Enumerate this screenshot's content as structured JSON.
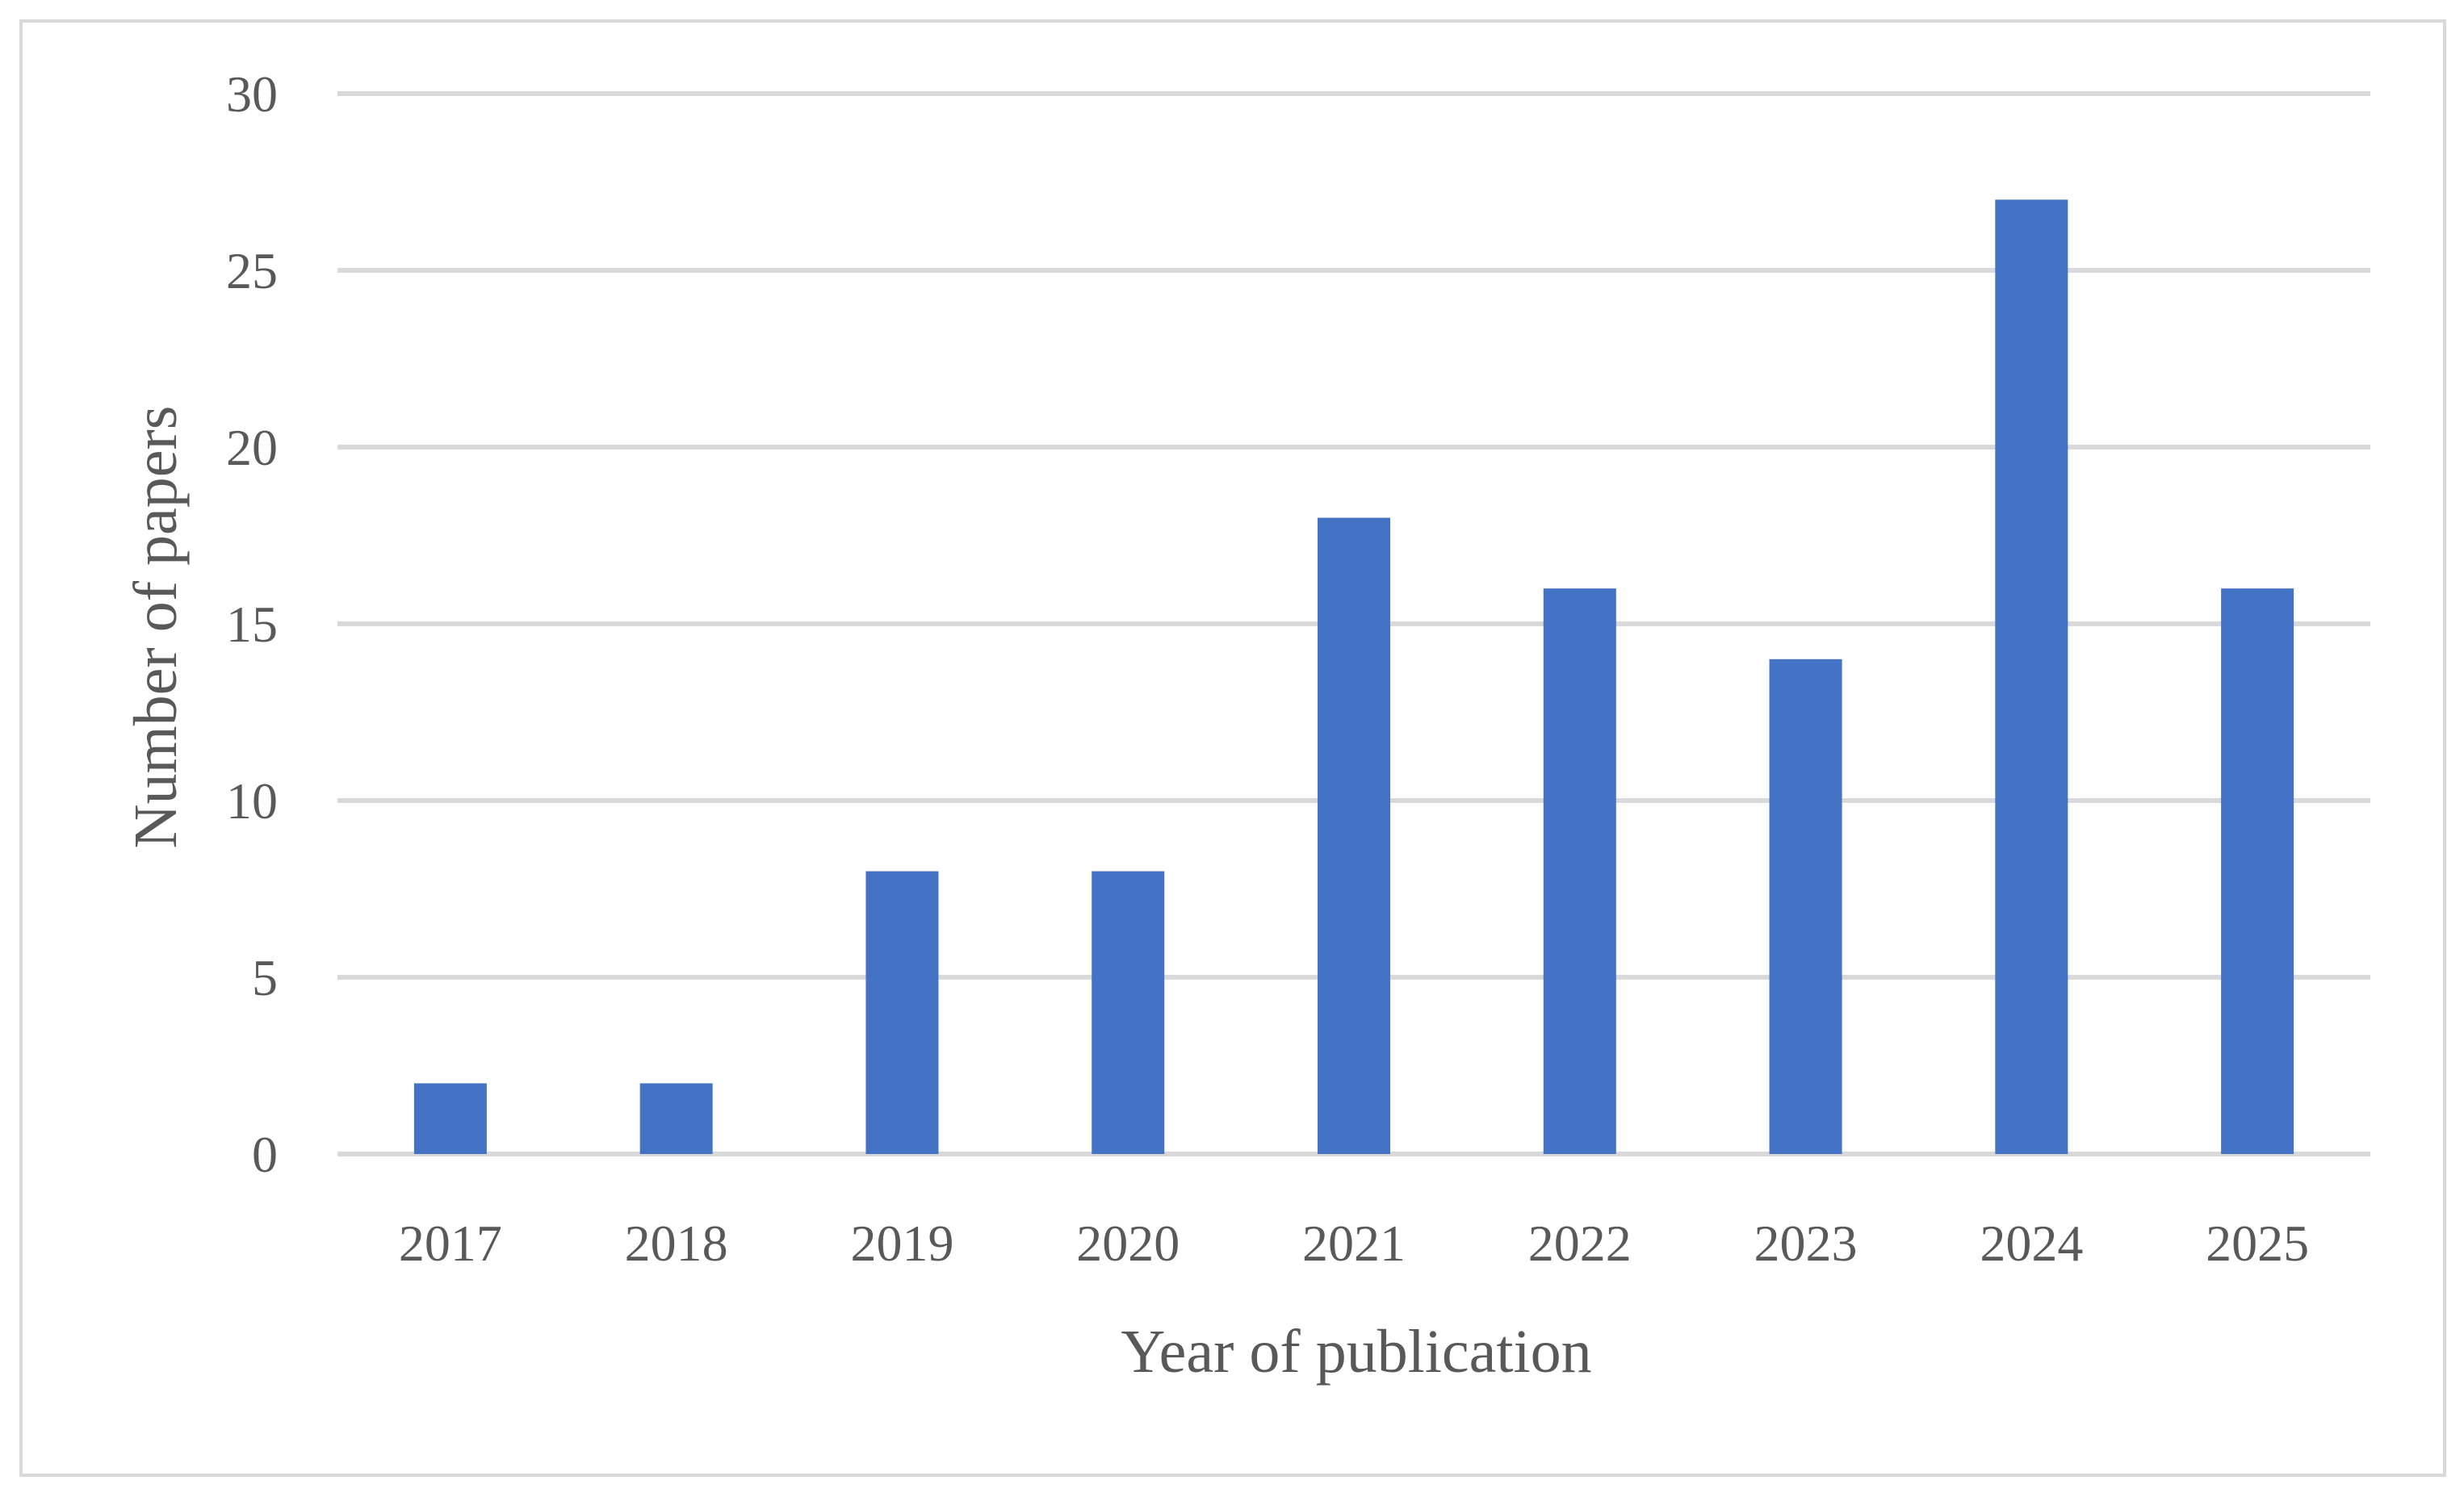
{
  "chart_data": {
    "type": "bar",
    "title": "",
    "xlabel": "Year of publication",
    "ylabel": "Number of papers",
    "categories": [
      "2017",
      "2018",
      "2019",
      "2020",
      "2021",
      "2022",
      "2023",
      "2024",
      "2025"
    ],
    "series": [
      {
        "values": [
          2,
          2,
          8,
          8,
          18,
          16,
          14,
          27,
          16
        ],
        "color": "#4472c4"
      }
    ],
    "ylim": [
      0,
      30
    ],
    "yticks": [
      0,
      5,
      10,
      15,
      20,
      25,
      30
    ],
    "grid": "horizontal",
    "legend": "none"
  }
}
